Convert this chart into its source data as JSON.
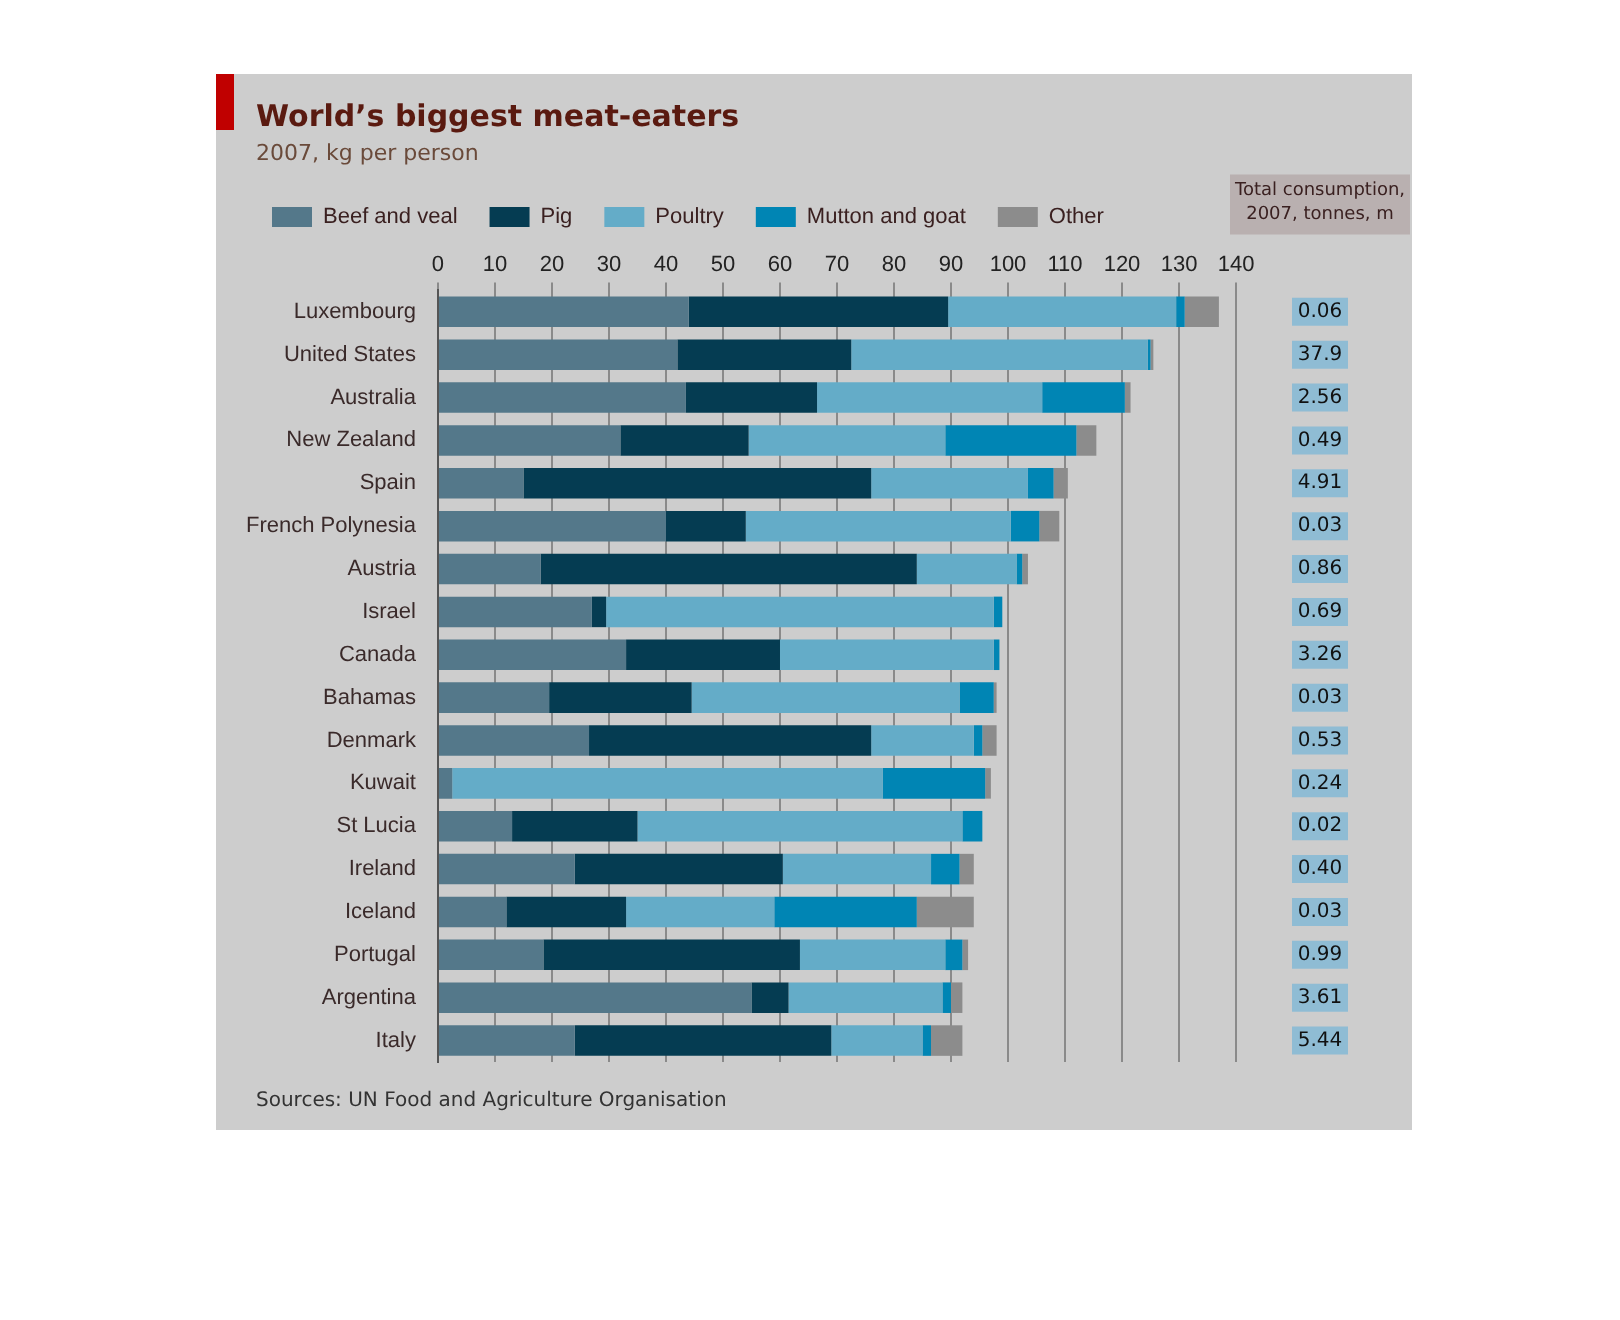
{
  "chart_data": {
    "type": "bar",
    "orientation": "horizontal",
    "stacked": true,
    "title": "World’s biggest meat-eaters",
    "subtitle": "2007, kg per person",
    "categories": [
      "Luxembourg",
      "United States",
      "Australia",
      "New Zealand",
      "Spain",
      "French Polynesia",
      "Austria",
      "Israel",
      "Canada",
      "Bahamas",
      "Denmark",
      "Kuwait",
      "St Lucia",
      "Ireland",
      "Iceland",
      "Portugal",
      "Argentina",
      "Italy"
    ],
    "series": [
      {
        "name": "Beef and veal",
        "color": "#54788a",
        "values": [
          44,
          42,
          43.5,
          32,
          15,
          40,
          18,
          27,
          33,
          19.5,
          26.5,
          2.5,
          13,
          24,
          12,
          18.5,
          55,
          24
        ]
      },
      {
        "name": "Pig",
        "color": "#053c52",
        "values": [
          45.5,
          30.5,
          23,
          22.5,
          61,
          14,
          66,
          2.5,
          27,
          25,
          49.5,
          0,
          22,
          36.5,
          21,
          45,
          6.5,
          45
        ]
      },
      {
        "name": "Poultry",
        "color": "#64acc8",
        "values": [
          40,
          52,
          39.5,
          34.5,
          27.5,
          46.5,
          17.5,
          68,
          37.5,
          47,
          18,
          75.5,
          57,
          26,
          26,
          25.5,
          27,
          16
        ]
      },
      {
        "name": "Mutton and goat",
        "color": "#0085b4",
        "values": [
          1.5,
          0.5,
          14.5,
          23,
          4.5,
          5,
          1,
          1.5,
          1,
          6,
          1.5,
          18,
          3.5,
          5,
          25,
          3,
          1.5,
          1.5
        ]
      },
      {
        "name": "Other",
        "color": "#8c8c8c",
        "values": [
          6,
          0.5,
          1,
          3.5,
          2.5,
          3.5,
          1,
          0,
          0,
          0.5,
          2.5,
          1,
          0,
          2.5,
          10,
          1,
          2,
          5.5
        ]
      }
    ],
    "xlim": [
      0,
      140
    ],
    "xticks": [
      0,
      10,
      20,
      30,
      40,
      50,
      60,
      70,
      80,
      90,
      100,
      110,
      120,
      130,
      140
    ],
    "grid": "x",
    "legend": "top left",
    "annotations": [
      "Total consumption, 2007, tonnes, m",
      "0.06",
      "37.9",
      "2.56",
      "0.49",
      "4.91",
      "0.03",
      "0.86",
      "0.69",
      "3.26",
      "0.03",
      "0.53",
      "0.24",
      "0.02",
      "0.40",
      "0.03",
      "0.99",
      "3.61",
      "5.44",
      "Sources: UN Food and Agriculture Organisation"
    ]
  }
}
